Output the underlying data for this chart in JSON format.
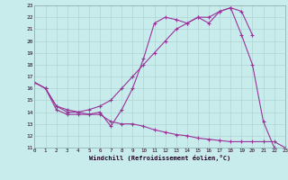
{
  "xlabel": "Windchill (Refroidissement éolien,°C)",
  "line_color": "#993399",
  "bg_color": "#c8ecec",
  "grid_color": "#aacccc",
  "xlim": [
    0,
    23
  ],
  "ylim": [
    11,
    23
  ],
  "xticks": [
    0,
    1,
    2,
    3,
    4,
    5,
    6,
    7,
    8,
    9,
    10,
    11,
    12,
    13,
    14,
    15,
    16,
    17,
    18,
    19,
    20,
    21,
    22,
    23
  ],
  "yticks": [
    11,
    12,
    13,
    14,
    15,
    16,
    17,
    18,
    19,
    20,
    21,
    22,
    23
  ],
  "line1_x": [
    0,
    1,
    2,
    3,
    4,
    5,
    6,
    7,
    8,
    9,
    10,
    11,
    12,
    13,
    14,
    15,
    16,
    17,
    18,
    19,
    20,
    21,
    22
  ],
  "line1_y": [
    16.5,
    16.0,
    14.2,
    13.8,
    13.8,
    13.8,
    14.0,
    12.8,
    14.2,
    16.0,
    18.5,
    21.5,
    22.0,
    21.8,
    21.5,
    22.0,
    21.5,
    22.5,
    22.8,
    20.5,
    18.0,
    13.2,
    11.0
  ],
  "line2_x": [
    0,
    1,
    2,
    3,
    4,
    5,
    6,
    7,
    8,
    9,
    10,
    11,
    12,
    13,
    14,
    15,
    16,
    17,
    18,
    19,
    20
  ],
  "line2_y": [
    16.5,
    16.0,
    14.5,
    14.0,
    14.0,
    14.2,
    14.5,
    15.0,
    16.0,
    17.0,
    18.0,
    19.0,
    20.0,
    21.0,
    21.5,
    22.0,
    22.0,
    22.5,
    22.8,
    22.5,
    20.5
  ],
  "line3_x": [
    0,
    1,
    2,
    3,
    4,
    5,
    6,
    7,
    8,
    9,
    10,
    11,
    12,
    13,
    14,
    15,
    16,
    17,
    18,
    19,
    20,
    21,
    22,
    23
  ],
  "line3_y": [
    16.5,
    16.0,
    14.5,
    14.2,
    14.0,
    13.8,
    13.8,
    13.2,
    13.0,
    13.0,
    12.8,
    12.5,
    12.3,
    12.1,
    12.0,
    11.8,
    11.7,
    11.6,
    11.5,
    11.5,
    11.5,
    11.5,
    11.5,
    11.0
  ]
}
